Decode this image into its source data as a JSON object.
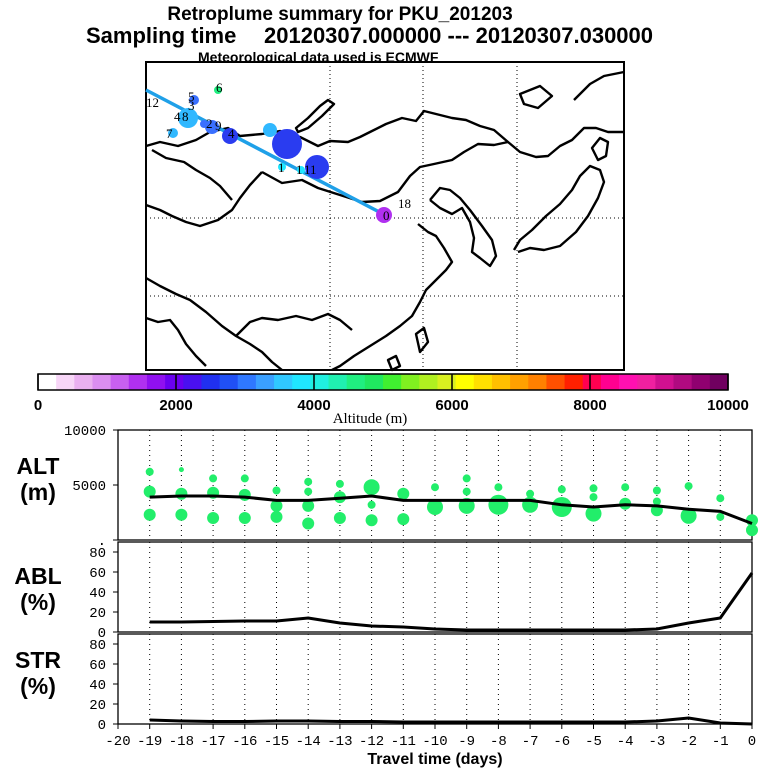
{
  "header": {
    "title": "Retroplume summary for PKU_201203",
    "sampling_label": "Sampling time",
    "sampling_range": "20120307.000000 --- 20120307.030000",
    "met_note": "Meteorological data used is ECMWF"
  },
  "colorbar": {
    "title": "Altitude (m)",
    "min": 0,
    "max": 10000,
    "tick_values": [
      0,
      2000,
      4000,
      6000,
      8000,
      10000
    ],
    "tick_labels": [
      "0",
      "2000",
      "4000",
      "6000",
      "8000",
      "10000"
    ],
    "colors": [
      "#ffffff",
      "#f7d6f7",
      "#eab0f0",
      "#db8ef0",
      "#c860f0",
      "#b030f0",
      "#9010f0",
      "#6a00f0",
      "#4a10f0",
      "#2030f0",
      "#2050f5",
      "#2f78ff",
      "#3aa0ff",
      "#30c8ff",
      "#20e6ff",
      "#20f0e0",
      "#20f0b0",
      "#20ef80",
      "#20e860",
      "#40f030",
      "#80f020",
      "#b0f020",
      "#d8f020",
      "#ffff00",
      "#ffe000",
      "#ffc000",
      "#ffa000",
      "#ff8000",
      "#ff5000",
      "#ff2000",
      "#ff0050",
      "#ff0090",
      "#ff10b0",
      "#f020a0",
      "#d01090",
      "#b00a80",
      "#900070",
      "#700060"
    ]
  },
  "map": {
    "receptor_label": "0",
    "cluster_labels": [
      {
        "text": "0"
      },
      {
        "text": "18"
      },
      {
        "text": "1"
      },
      {
        "text": "1"
      },
      {
        "text": "11"
      },
      {
        "text": "12"
      },
      {
        "text": "5"
      },
      {
        "text": "6"
      },
      {
        "text": "7"
      },
      {
        "text": "4"
      },
      {
        "text": "8"
      },
      {
        "text": "3"
      },
      {
        "text": "2"
      },
      {
        "text": "9"
      },
      {
        "text": "4"
      }
    ]
  },
  "chart_data": [
    {
      "type": "scatter+line",
      "panel_label": "ALT\n(m)",
      "panel_label_lines": [
        "ALT",
        "(m)"
      ],
      "ylim": [
        0,
        10000
      ],
      "y_tick_labels": [
        "10000",
        "5000",
        "."
      ],
      "line_x": [
        -19,
        -18,
        -17,
        -16,
        -15,
        -14,
        -13,
        -12,
        -11,
        -10,
        -9,
        -8,
        -7,
        -6,
        -5,
        -4,
        -3,
        -2,
        -1,
        0
      ],
      "line_y": [
        3900,
        4000,
        4000,
        3900,
        3600,
        3600,
        3800,
        4000,
        3600,
        3600,
        3600,
        3600,
        3600,
        3200,
        3000,
        3200,
        3100,
        2800,
        2600,
        1500
      ],
      "plume_points": [
        {
          "x": -19,
          "y": 6200,
          "s": 1
        },
        {
          "x": -19,
          "y": 4400,
          "s": 2
        },
        {
          "x": -19,
          "y": 2300,
          "s": 2
        },
        {
          "x": -18,
          "y": 6400,
          "s": 0
        },
        {
          "x": -18,
          "y": 4200,
          "s": 2
        },
        {
          "x": -18,
          "y": 2300,
          "s": 2
        },
        {
          "x": -17,
          "y": 5600,
          "s": 1
        },
        {
          "x": -17,
          "y": 4300,
          "s": 2
        },
        {
          "x": -17,
          "y": 2000,
          "s": 2
        },
        {
          "x": -16,
          "y": 5600,
          "s": 1
        },
        {
          "x": -16,
          "y": 4100,
          "s": 2
        },
        {
          "x": -16,
          "y": 2000,
          "s": 2
        },
        {
          "x": -15,
          "y": 4500,
          "s": 1
        },
        {
          "x": -15,
          "y": 3100,
          "s": 2
        },
        {
          "x": -15,
          "y": 2100,
          "s": 2
        },
        {
          "x": -14,
          "y": 5300,
          "s": 1
        },
        {
          "x": -14,
          "y": 4400,
          "s": 1
        },
        {
          "x": -14,
          "y": 3100,
          "s": 2
        },
        {
          "x": -14,
          "y": 1500,
          "s": 2
        },
        {
          "x": -13,
          "y": 5100,
          "s": 1
        },
        {
          "x": -13,
          "y": 3900,
          "s": 2
        },
        {
          "x": -13,
          "y": 2000,
          "s": 2
        },
        {
          "x": -12,
          "y": 4800,
          "s": 3
        },
        {
          "x": -12,
          "y": 3200,
          "s": 1
        },
        {
          "x": -12,
          "y": 1800,
          "s": 2
        },
        {
          "x": -11,
          "y": 4200,
          "s": 2
        },
        {
          "x": -11,
          "y": 1900,
          "s": 2
        },
        {
          "x": -10,
          "y": 4800,
          "s": 1
        },
        {
          "x": -10,
          "y": 3000,
          "s": 3
        },
        {
          "x": -9,
          "y": 5600,
          "s": 1
        },
        {
          "x": -9,
          "y": 4400,
          "s": 1
        },
        {
          "x": -9,
          "y": 3100,
          "s": 3
        },
        {
          "x": -8,
          "y": 4800,
          "s": 1
        },
        {
          "x": -8,
          "y": 3200,
          "s": 4
        },
        {
          "x": -7,
          "y": 4200,
          "s": 1
        },
        {
          "x": -7,
          "y": 3200,
          "s": 3
        },
        {
          "x": -6,
          "y": 4600,
          "s": 1
        },
        {
          "x": -6,
          "y": 3000,
          "s": 4
        },
        {
          "x": -5,
          "y": 4700,
          "s": 1
        },
        {
          "x": -5,
          "y": 3900,
          "s": 1
        },
        {
          "x": -5,
          "y": 2400,
          "s": 3
        },
        {
          "x": -4,
          "y": 4800,
          "s": 1
        },
        {
          "x": -4,
          "y": 3300,
          "s": 2
        },
        {
          "x": -3,
          "y": 4500,
          "s": 1
        },
        {
          "x": -3,
          "y": 3500,
          "s": 1
        },
        {
          "x": -3,
          "y": 2700,
          "s": 2
        },
        {
          "x": -2,
          "y": 4900,
          "s": 1
        },
        {
          "x": -2,
          "y": 2200,
          "s": 3
        },
        {
          "x": -1,
          "y": 3800,
          "s": 1
        },
        {
          "x": -1,
          "y": 2100,
          "s": 1
        },
        {
          "x": 0,
          "y": 1800,
          "s": 2
        },
        {
          "x": 0,
          "y": 900,
          "s": 2
        }
      ]
    },
    {
      "type": "line",
      "panel_label_lines": [
        "ABL",
        "(%)"
      ],
      "ylim": [
        0,
        90
      ],
      "y_tick_labels": [
        "80",
        "60",
        "40",
        "20",
        "0"
      ],
      "x": [
        -19,
        -18,
        -17,
        -16,
        -15,
        -14,
        -13,
        -12,
        -11,
        -10,
        -9,
        -8,
        -7,
        -6,
        -5,
        -4,
        -3,
        -2,
        -1,
        0
      ],
      "y": [
        10,
        10,
        10.5,
        11,
        11,
        14,
        9,
        6,
        5,
        3,
        2,
        2,
        2,
        2,
        2,
        2,
        3,
        9,
        14,
        59
      ]
    },
    {
      "type": "line",
      "panel_label_lines": [
        "STR",
        "(%)"
      ],
      "ylim": [
        0,
        90
      ],
      "y_tick_labels": [
        "80",
        "60",
        "40",
        "20",
        "0"
      ],
      "x": [
        -19,
        -18,
        -17,
        -16,
        -15,
        -14,
        -13,
        -12,
        -11,
        -10,
        -9,
        -8,
        -7,
        -6,
        -5,
        -4,
        -3,
        -2,
        -1,
        0
      ],
      "y": [
        4,
        3,
        2.5,
        2.5,
        3,
        3,
        2.5,
        2.5,
        2,
        2,
        2,
        2,
        2,
        2,
        2,
        2,
        3,
        6,
        1,
        0
      ],
      "xlim": [
        -20,
        0
      ],
      "x_tick_labels": [
        "-20",
        "-19",
        "-18",
        "-17",
        "-16",
        "-15",
        "-14",
        "-13",
        "-12",
        "-11",
        "-10",
        "-9",
        "-8",
        "-7",
        "-6",
        "-5",
        "-4",
        "-3",
        "-2",
        "-1",
        "0"
      ],
      "xlabel": "Travel time (days)"
    }
  ]
}
